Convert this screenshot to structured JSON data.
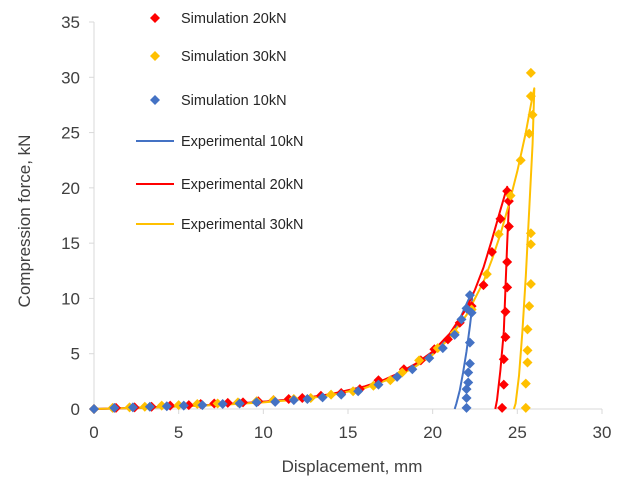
{
  "chart_data": {
    "type": "scatter",
    "xlabel": "Displacement, mm",
    "ylabel": "Compression force, kN",
    "xlim": [
      0,
      30
    ],
    "ylim": [
      0,
      35
    ],
    "xticks": [
      "0",
      "5",
      "10",
      "15",
      "20",
      "25",
      "30"
    ],
    "yticks": [
      "0",
      "5",
      "10",
      "15",
      "20",
      "25",
      "30",
      "35"
    ],
    "grid": false,
    "legend_position": "top-left inside",
    "series": [
      {
        "name": "Simulation 20kN",
        "kind": "markers",
        "color": "#FF0000",
        "points": [
          [
            0,
            0
          ],
          [
            1.3,
            0.1
          ],
          [
            2.4,
            0.15
          ],
          [
            3.4,
            0.2
          ],
          [
            4.5,
            0.3
          ],
          [
            5.6,
            0.35
          ],
          [
            6.3,
            0.45
          ],
          [
            7.1,
            0.5
          ],
          [
            7.9,
            0.55
          ],
          [
            8.8,
            0.6
          ],
          [
            9.7,
            0.7
          ],
          [
            10.6,
            0.8
          ],
          [
            11.5,
            0.9
          ],
          [
            12.3,
            1.0
          ],
          [
            13.4,
            1.2
          ],
          [
            14.6,
            1.45
          ],
          [
            15.7,
            1.8
          ],
          [
            16.8,
            2.6
          ],
          [
            18.3,
            3.6
          ],
          [
            19.3,
            4.4
          ],
          [
            20.1,
            5.4
          ],
          [
            20.9,
            6.3
          ],
          [
            21.6,
            7.8
          ],
          [
            22.3,
            9.3
          ],
          [
            23.0,
            11.2
          ],
          [
            23.5,
            14.2
          ],
          [
            24.0,
            17.2
          ],
          [
            24.4,
            19.7
          ],
          [
            24.5,
            18.8
          ],
          [
            24.5,
            16.5
          ],
          [
            24.4,
            13.3
          ],
          [
            24.4,
            11.0
          ],
          [
            24.3,
            8.8
          ],
          [
            24.3,
            6.5
          ],
          [
            24.2,
            4.5
          ],
          [
            24.2,
            2.2
          ],
          [
            24.1,
            0.1
          ]
        ]
      },
      {
        "name": "Simulation 30kN",
        "kind": "markers",
        "color": "#FFC000",
        "points": [
          [
            0,
            0
          ],
          [
            1.1,
            0.1
          ],
          [
            2.1,
            0.15
          ],
          [
            3.0,
            0.2
          ],
          [
            4.0,
            0.3
          ],
          [
            5.0,
            0.35
          ],
          [
            6.1,
            0.45
          ],
          [
            7.3,
            0.5
          ],
          [
            8.5,
            0.6
          ],
          [
            9.6,
            0.7
          ],
          [
            10.6,
            0.8
          ],
          [
            11.8,
            0.9
          ],
          [
            12.8,
            1.0
          ],
          [
            14.0,
            1.3
          ],
          [
            15.3,
            1.6
          ],
          [
            16.5,
            2.1
          ],
          [
            17.5,
            2.6
          ],
          [
            18.2,
            3.3
          ],
          [
            19.2,
            4.4
          ],
          [
            20.3,
            5.5
          ],
          [
            21.3,
            6.9
          ],
          [
            22.3,
            9.0
          ],
          [
            23.2,
            12.2
          ],
          [
            23.9,
            15.8
          ],
          [
            24.6,
            19.3
          ],
          [
            25.2,
            22.5
          ],
          [
            25.7,
            24.9
          ],
          [
            25.8,
            28.3
          ],
          [
            25.8,
            30.4
          ],
          [
            25.9,
            26.6
          ],
          [
            25.8,
            15.9
          ],
          [
            25.8,
            14.9
          ],
          [
            25.8,
            11.3
          ],
          [
            25.7,
            9.3
          ],
          [
            25.6,
            7.2
          ],
          [
            25.6,
            5.3
          ],
          [
            25.6,
            4.2
          ],
          [
            25.5,
            2.3
          ],
          [
            25.5,
            0.1
          ]
        ]
      },
      {
        "name": "Simulation 10kN",
        "kind": "markers",
        "color": "#4472C4",
        "points": [
          [
            0,
            0
          ],
          [
            1.2,
            0.1
          ],
          [
            2.3,
            0.15
          ],
          [
            3.3,
            0.2
          ],
          [
            4.3,
            0.25
          ],
          [
            5.3,
            0.3
          ],
          [
            6.4,
            0.35
          ],
          [
            7.6,
            0.45
          ],
          [
            8.6,
            0.5
          ],
          [
            9.6,
            0.6
          ],
          [
            10.7,
            0.65
          ],
          [
            11.8,
            0.8
          ],
          [
            12.6,
            0.9
          ],
          [
            13.5,
            1.05
          ],
          [
            14.6,
            1.3
          ],
          [
            15.6,
            1.6
          ],
          [
            16.8,
            2.2
          ],
          [
            17.9,
            2.9
          ],
          [
            18.8,
            3.6
          ],
          [
            19.8,
            4.6
          ],
          [
            20.6,
            5.5
          ],
          [
            21.3,
            6.7
          ],
          [
            21.7,
            8.1
          ],
          [
            22.0,
            9.1
          ],
          [
            22.2,
            10.3
          ],
          [
            22.3,
            8.7
          ],
          [
            22.2,
            6.0
          ],
          [
            22.2,
            4.1
          ],
          [
            22.1,
            3.3
          ],
          [
            22.1,
            2.4
          ],
          [
            22.0,
            1.8
          ],
          [
            22.0,
            1.0
          ],
          [
            22.0,
            0.1
          ]
        ]
      },
      {
        "name": "Experimental 10kN",
        "kind": "line",
        "color": "#4472C4",
        "points": [
          [
            0,
            0
          ],
          [
            2,
            0.08
          ],
          [
            4,
            0.18
          ],
          [
            6,
            0.3
          ],
          [
            8,
            0.45
          ],
          [
            10,
            0.65
          ],
          [
            12,
            0.9
          ],
          [
            14,
            1.3
          ],
          [
            16,
            1.95
          ],
          [
            17,
            2.45
          ],
          [
            18,
            3.1
          ],
          [
            19,
            3.95
          ],
          [
            20,
            5.0
          ],
          [
            20.5,
            5.7
          ],
          [
            21,
            6.6
          ],
          [
            21.5,
            7.8
          ],
          [
            22,
            9.5
          ],
          [
            22.3,
            10.5
          ],
          [
            22.35,
            9.5
          ],
          [
            22.2,
            7.5
          ],
          [
            22.0,
            5.2
          ],
          [
            21.8,
            3.3
          ],
          [
            21.6,
            1.7
          ],
          [
            21.4,
            0.5
          ],
          [
            21.3,
            0
          ]
        ]
      },
      {
        "name": "Experimental 20kN",
        "kind": "line",
        "color": "#FF0000",
        "points": [
          [
            0,
            0
          ],
          [
            2,
            0.08
          ],
          [
            4,
            0.18
          ],
          [
            6,
            0.3
          ],
          [
            8,
            0.45
          ],
          [
            10,
            0.65
          ],
          [
            12,
            0.9
          ],
          [
            14,
            1.35
          ],
          [
            16,
            2.05
          ],
          [
            17,
            2.55
          ],
          [
            18,
            3.25
          ],
          [
            19,
            4.1
          ],
          [
            20,
            5.2
          ],
          [
            21,
            6.8
          ],
          [
            22,
            9.1
          ],
          [
            22.5,
            10.8
          ],
          [
            23,
            12.8
          ],
          [
            23.5,
            15.3
          ],
          [
            24,
            18.0
          ],
          [
            24.4,
            20.1
          ],
          [
            24.5,
            18.5
          ],
          [
            24.4,
            15.0
          ],
          [
            24.3,
            11.0
          ],
          [
            24.2,
            7.0
          ],
          [
            24.0,
            3.5
          ],
          [
            23.8,
            0.8
          ],
          [
            23.7,
            0
          ]
        ]
      },
      {
        "name": "Experimental 30kN",
        "kind": "line",
        "color": "#FFC000",
        "points": [
          [
            0,
            0
          ],
          [
            2,
            0.08
          ],
          [
            4,
            0.17
          ],
          [
            6,
            0.28
          ],
          [
            8,
            0.42
          ],
          [
            10,
            0.6
          ],
          [
            12,
            0.85
          ],
          [
            14,
            1.25
          ],
          [
            16,
            1.9
          ],
          [
            18,
            3.0
          ],
          [
            19,
            3.85
          ],
          [
            20,
            4.9
          ],
          [
            21,
            6.4
          ],
          [
            22,
            8.5
          ],
          [
            23,
            11.5
          ],
          [
            23.5,
            13.5
          ],
          [
            24,
            15.8
          ],
          [
            24.5,
            18.5
          ],
          [
            25,
            21.5
          ],
          [
            25.5,
            25.0
          ],
          [
            25.8,
            27.5
          ],
          [
            26.0,
            29.0
          ],
          [
            25.9,
            24.0
          ],
          [
            25.7,
            18.0
          ],
          [
            25.5,
            12.0
          ],
          [
            25.3,
            7.0
          ],
          [
            25.1,
            3.0
          ],
          [
            24.9,
            0.5
          ],
          [
            24.8,
            0
          ]
        ]
      }
    ]
  }
}
